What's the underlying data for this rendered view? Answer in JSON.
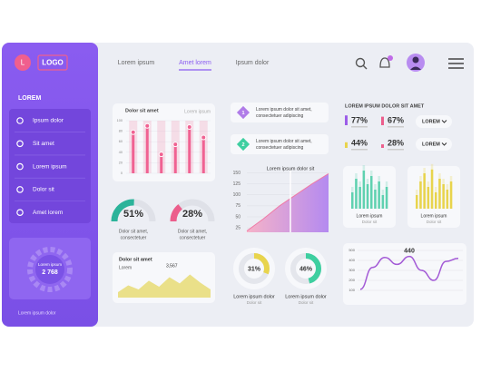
{
  "sidebar": {
    "logo_letter": "L",
    "logo": "LOGO",
    "section": "LOREM",
    "menu": [
      "Ipsum dolor",
      "Sit amet",
      "Lorem ipsum",
      "Dolor sit",
      "Amet lorem"
    ],
    "gauge": {
      "label": "Lorem ipsum",
      "value": "2 768"
    },
    "footer": "Lorem ipsum dolor"
  },
  "nav": {
    "tabs": [
      "Lorem ipsum",
      "Amet lorem",
      "Ipsum dolor"
    ],
    "active_tab": 1
  },
  "bar_card": {
    "title": "Dolor sit amet",
    "legend": "Lorem ipsum",
    "values": [
      78,
      90,
      36,
      55,
      88,
      68
    ],
    "ylim": [
      0,
      100
    ],
    "yticks": [
      0,
      20,
      40,
      60,
      80,
      100
    ],
    "color": "#f06292"
  },
  "gauges": [
    {
      "value": 51,
      "label": "51%",
      "desc": [
        "Dolor sit amet,",
        "consectetuer"
      ],
      "color": "#2bb39a"
    },
    {
      "value": 28,
      "label": "28%",
      "desc": [
        "Dolor sit amet,",
        "consectetuer"
      ],
      "color": "#ec5e8c"
    }
  ],
  "area_card": {
    "title": "Dolor sit amet",
    "subtitle": "Lorem",
    "value": "3,567",
    "values": [
      20,
      45,
      30,
      62,
      40,
      75,
      52,
      85,
      55,
      30
    ],
    "color": "#e8dc74"
  },
  "list": [
    {
      "number": "1",
      "text": [
        "Lorem ipsum dolor sit amet,",
        "consectetuer adipiscing"
      ],
      "color": "#b07ce8"
    },
    {
      "number": "2",
      "text": [
        "Lorem ipsum dolor sit amet,",
        "consectetuer adipiscing"
      ],
      "color": "#3ecfa0"
    }
  ],
  "area_chart": {
    "title": "Lorem ipsum dolor sit",
    "values": [
      18,
      45,
      75,
      100,
      125,
      148
    ],
    "ylim": [
      15,
      155
    ],
    "yticks": [
      25,
      50,
      75,
      100,
      125,
      150
    ]
  },
  "donuts": [
    {
      "value": 31,
      "label": "31%",
      "title": "Lorem ipsum dolor",
      "subtitle": "Dolor sit",
      "color": "#e8d44d"
    },
    {
      "value": 46,
      "label": "46%",
      "title": "Lorem ipsum dolor",
      "subtitle": "Dolor sit",
      "color": "#3ecfa0"
    }
  ],
  "stats": {
    "title": "LOREM IPSUM DOLOR SIT AMET",
    "items": [
      {
        "value": 77,
        "label": "77%",
        "color": "#9c5de8"
      },
      {
        "value": 67,
        "label": "67%",
        "color": "#ec5e8c"
      },
      {
        "value": 44,
        "label": "44%",
        "color": "#e8d44d"
      },
      {
        "value": 28,
        "label": "28%",
        "color": "#ec5e8c"
      }
    ],
    "dropdowns": [
      "LOREM",
      "LOREM"
    ]
  },
  "bar_cards": [
    {
      "values": [
        30,
        55,
        40,
        70,
        45,
        60,
        35,
        50,
        25,
        40
      ],
      "color": "#5fd1b0",
      "title": "Lorem ipsum",
      "subtitle": "Dolor sit"
    },
    {
      "values": [
        25,
        50,
        65,
        40,
        72,
        30,
        55,
        45,
        35,
        50
      ],
      "color": "#e8d44d",
      "title": "Lorem ipsum",
      "subtitle": "Dolor sit"
    }
  ],
  "line_chart": {
    "values": [
      110,
      330,
      430,
      360,
      440,
      300,
      200,
      390,
      420
    ],
    "ylim": [
      100,
      500
    ],
    "yticks": [
      100,
      200,
      300,
      400,
      500
    ],
    "annotation": 440,
    "color": "#a35ad6"
  }
}
